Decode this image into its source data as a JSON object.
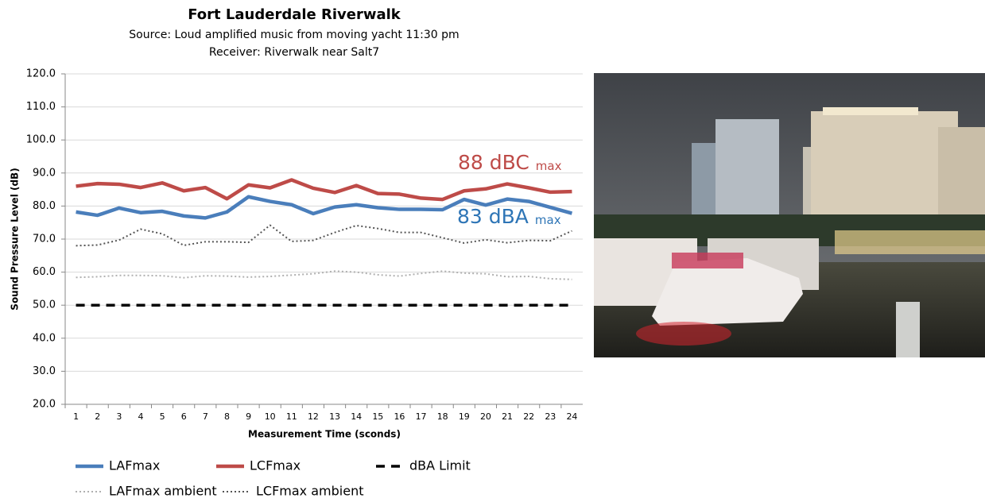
{
  "chart_data": {
    "type": "line",
    "title": "Fort Lauderdale Riverwalk",
    "subtitle": [
      "Source: Loud amplified music from moving yacht 11:30 pm",
      "Receiver: Riverwalk near Salt7"
    ],
    "x_label": "Measurement Time (sconds)",
    "y_label": "Sound Pressure Level (dB)",
    "categories": [
      "1",
      "2",
      "3",
      "4",
      "5",
      "6",
      "7",
      "8",
      "9",
      "10",
      "11",
      "12",
      "13",
      "14",
      "15",
      "16",
      "17",
      "18",
      "19",
      "20",
      "21",
      "22",
      "23",
      "24"
    ],
    "ylim": [
      20,
      120
    ],
    "yticks": [
      {
        "value": 20,
        "label": "20.0"
      },
      {
        "value": 30,
        "label": "30.0"
      },
      {
        "value": 40,
        "label": "40.0"
      },
      {
        "value": 50,
        "label": "50.0"
      },
      {
        "value": 60,
        "label": "60.0"
      },
      {
        "value": 70,
        "label": "70.0"
      },
      {
        "value": 80,
        "label": "80.0"
      },
      {
        "value": 90,
        "label": "90.0"
      },
      {
        "value": 100,
        "label": "100.0"
      },
      {
        "value": 110,
        "label": "110.0"
      },
      {
        "value": 120,
        "label": "120.0"
      }
    ],
    "grid": true,
    "series": [
      {
        "name": "LAFmax",
        "color": "#4a7ebb",
        "style": "solid",
        "values": [
          78.2,
          77.2,
          79.4,
          78,
          78.4,
          77,
          76.4,
          78.2,
          82.8,
          81.4,
          80.4,
          77.7,
          79.7,
          80.4,
          79.5,
          79,
          79,
          78.9,
          82,
          80.3,
          82.1,
          81.4,
          79.6,
          77.8
        ]
      },
      {
        "name": "LCFmax",
        "color": "#be4b48",
        "style": "solid",
        "values": [
          86,
          86.8,
          86.6,
          85.6,
          87,
          84.6,
          85.6,
          82.2,
          86.4,
          85.5,
          87.9,
          85.4,
          84.1,
          86.2,
          83.8,
          83.6,
          82.4,
          82,
          84.6,
          85.2,
          86.7,
          85.5,
          84.2,
          84.4
        ]
      },
      {
        "name": "dBA Limit",
        "color": "#000000",
        "style": "dashed",
        "values": [
          50,
          50,
          50,
          50,
          50,
          50,
          50,
          50,
          50,
          50,
          50,
          50,
          50,
          50,
          50,
          50,
          50,
          50,
          50,
          50,
          50,
          50,
          50,
          50
        ]
      },
      {
        "name": "LAFmax ambient",
        "color": "#b0b0b0",
        "style": "dotted",
        "values": [
          58.4,
          58.6,
          59,
          59,
          58.9,
          58.3,
          58.9,
          58.8,
          58.5,
          58.7,
          59.1,
          59.5,
          60.3,
          60,
          59.2,
          58.8,
          59.6,
          60.3,
          59.7,
          59.5,
          58.6,
          58.7,
          58,
          57.8
        ]
      },
      {
        "name": "LCFmax  ambient",
        "color": "#555555",
        "style": "dotted",
        "values": [
          68,
          68.2,
          69.7,
          73,
          71.6,
          68.1,
          69.2,
          69.2,
          69,
          74.2,
          69.3,
          69.6,
          72,
          74.1,
          73.2,
          72,
          72,
          70.4,
          68.8,
          69.8,
          68.9,
          69.6,
          69.5,
          72.5
        ]
      }
    ],
    "annotations": [
      {
        "text": "88 dBC",
        "sub": "max",
        "color": "#be4b48"
      },
      {
        "text": "83 dBA",
        "sub": "max",
        "color": "#2e75b6"
      }
    ]
  }
}
